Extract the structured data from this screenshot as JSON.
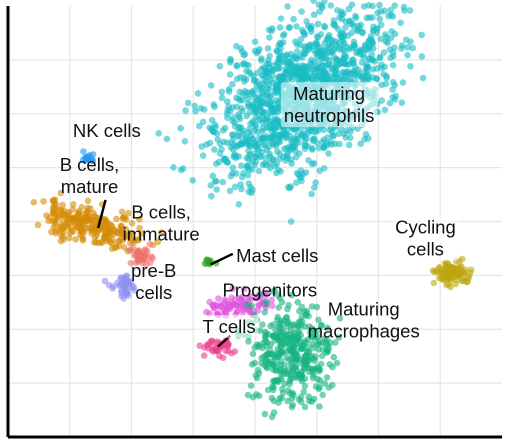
{
  "chart_data": {
    "type": "scatter",
    "title": "",
    "xlabel": "",
    "ylabel": "",
    "xlim": [
      -10,
      10
    ],
    "ylim": [
      -10,
      10
    ],
    "grid": true,
    "legend": "none",
    "series": [
      {
        "name": "Maturing neutrophils",
        "color": "#1bbcc4",
        "n": 1400,
        "cx": 1.9,
        "cy": 5.9,
        "sx": 1.35,
        "sy": 2.3,
        "rot": -40
      },
      {
        "name": "Cycling cells",
        "color": "#bca60f",
        "n": 90,
        "cx": 8.0,
        "cy": -2.4,
        "sx": 0.38,
        "sy": 0.3,
        "rot": 0
      },
      {
        "name": "NK cells",
        "color": "#2196f3",
        "n": 14,
        "cx": -6.8,
        "cy": 3.0,
        "sx": 0.12,
        "sy": 0.1,
        "rot": 0
      },
      {
        "name": "B cells, mature",
        "color": "#d38c06",
        "n": 260,
        "cx": -6.6,
        "cy": -0.2,
        "sx": 1.1,
        "sy": 0.42,
        "rot": -18
      },
      {
        "name": "B cells, immature",
        "color": "#f0716a",
        "n": 40,
        "cx": -4.6,
        "cy": -1.6,
        "sx": 0.25,
        "sy": 0.22,
        "rot": 0
      },
      {
        "name": "pre-B cells",
        "color": "#8f8ff0",
        "n": 40,
        "cx": -5.3,
        "cy": -3.0,
        "sx": 0.3,
        "sy": 0.22,
        "rot": 25
      },
      {
        "name": "Mast cells",
        "color": "#2ca322",
        "n": 12,
        "cx": -1.85,
        "cy": -1.9,
        "sx": 0.12,
        "sy": 0.1,
        "rot": 0
      },
      {
        "name": "Progenitors",
        "color": "#e055e0",
        "n": 90,
        "cx": -0.7,
        "cy": -3.9,
        "sx": 0.6,
        "sy": 0.32,
        "rot": 0
      },
      {
        "name": "T cells",
        "color": "#ec3f8e",
        "n": 40,
        "cx": -1.5,
        "cy": -5.9,
        "sx": 0.35,
        "sy": 0.2,
        "rot": 0
      },
      {
        "name": "Maturing macrophages",
        "color": "#16b482",
        "n": 380,
        "cx": 1.45,
        "cy": -6.1,
        "sx": 0.85,
        "sy": 1.15,
        "rot": 0
      }
    ],
    "labels": [
      {
        "id": "maturing-neutrophils",
        "lines": [
          "Maturing",
          "neutrophils"
        ],
        "x": 3.0,
        "y": 5.4,
        "anchor": "middle",
        "bg": true
      },
      {
        "id": "nk-cells",
        "lines": [
          "NK cells"
        ],
        "x": -6.0,
        "y": 4.2,
        "anchor": "middle",
        "bg": false
      },
      {
        "id": "b-cells-mature",
        "lines": [
          "B cells,",
          "mature"
        ],
        "x": -6.7,
        "y": 2.1,
        "anchor": "middle",
        "bg": false
      },
      {
        "id": "b-cells-immature",
        "lines": [
          "B cells,",
          "immature"
        ],
        "x": -3.8,
        "y": -0.1,
        "anchor": "middle",
        "bg": false
      },
      {
        "id": "pre-b-cells",
        "lines": [
          "pre-B",
          "cells"
        ],
        "x": -4.1,
        "y": -2.8,
        "anchor": "middle",
        "bg": false
      },
      {
        "id": "mast-cells",
        "lines": [
          "Mast cells"
        ],
        "x": 0.9,
        "y": -1.6,
        "anchor": "middle",
        "bg": false
      },
      {
        "id": "progenitors",
        "lines": [
          "Progenitors"
        ],
        "x": 0.6,
        "y": -3.2,
        "anchor": "middle",
        "bg": false
      },
      {
        "id": "t-cells",
        "lines": [
          "T cells"
        ],
        "x": -1.05,
        "y": -4.9,
        "anchor": "middle",
        "bg": true
      },
      {
        "id": "maturing-macrophages",
        "lines": [
          "Maturing",
          "macrophages"
        ],
        "x": 4.4,
        "y": -4.6,
        "anchor": "middle",
        "bg": false
      },
      {
        "id": "cycling-cells",
        "lines": [
          "Cycling",
          "cells"
        ],
        "x": 6.9,
        "y": -0.8,
        "anchor": "middle",
        "bg": true
      }
    ],
    "leaders": [
      {
        "id": "b-cells-mature",
        "x1": -6.05,
        "y1": 1.0,
        "x2": -6.35,
        "y2": -0.3
      },
      {
        "id": "mast-cells",
        "x1": -0.9,
        "y1": -1.5,
        "x2": -1.8,
        "y2": -2.0
      },
      {
        "id": "t-cells",
        "x1": -1.0,
        "y1": -5.3,
        "x2": -1.5,
        "y2": -5.8
      }
    ]
  }
}
